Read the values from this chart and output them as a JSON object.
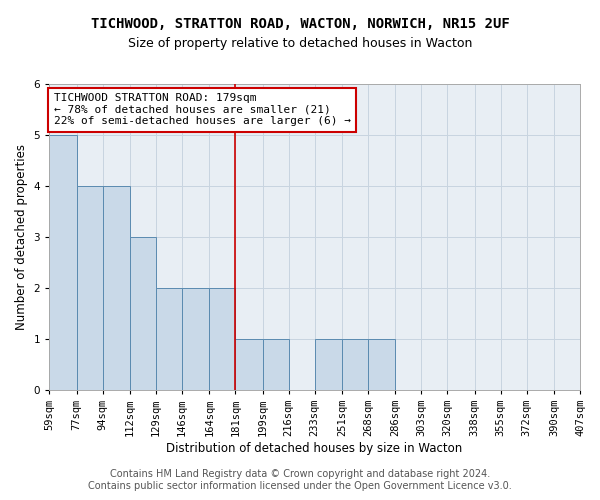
{
  "title": "TICHWOOD, STRATTON ROAD, WACTON, NORWICH, NR15 2UF",
  "subtitle": "Size of property relative to detached houses in Wacton",
  "xlabel": "Distribution of detached houses by size in Wacton",
  "ylabel": "Number of detached properties",
  "footer_line1": "Contains HM Land Registry data © Crown copyright and database right 2024.",
  "footer_line2": "Contains public sector information licensed under the Open Government Licence v3.0.",
  "annotation_title": "TICHWOOD STRATTON ROAD: 179sqm",
  "annotation_line2": "← 78% of detached houses are smaller (21)",
  "annotation_line3": "22% of semi-detached houses are larger (6) →",
  "bin_edges": [
    59,
    77,
    94,
    112,
    129,
    146,
    164,
    181,
    199,
    216,
    233,
    251,
    268,
    286,
    303,
    320,
    338,
    355,
    372,
    390,
    407
  ],
  "bin_labels": [
    "59sqm",
    "77sqm",
    "94sqm",
    "112sqm",
    "129sqm",
    "146sqm",
    "164sqm",
    "181sqm",
    "199sqm",
    "216sqm",
    "233sqm",
    "251sqm",
    "268sqm",
    "286sqm",
    "303sqm",
    "320sqm",
    "338sqm",
    "355sqm",
    "372sqm",
    "390sqm",
    "407sqm"
  ],
  "counts": [
    5,
    4,
    4,
    3,
    2,
    2,
    2,
    1,
    1,
    0,
    1,
    1,
    1,
    0,
    0,
    0,
    0,
    0,
    0,
    0
  ],
  "bar_color": "#c9d9e8",
  "bar_edge_color": "#5a8ab0",
  "vline_x": 181,
  "vline_color": "#cc0000",
  "annotation_box_color": "#ffffff",
  "annotation_box_edge_color": "#cc0000",
  "ylim": [
    0,
    6
  ],
  "yticks": [
    0,
    1,
    2,
    3,
    4,
    5,
    6
  ],
  "grid_color": "#c8d4e0",
  "bg_color": "#e8eef4",
  "fig_bg_color": "#ffffff",
  "title_fontsize": 10,
  "subtitle_fontsize": 9,
  "axis_label_fontsize": 8.5,
  "tick_fontsize": 7.5,
  "annotation_fontsize": 8,
  "footer_fontsize": 7
}
